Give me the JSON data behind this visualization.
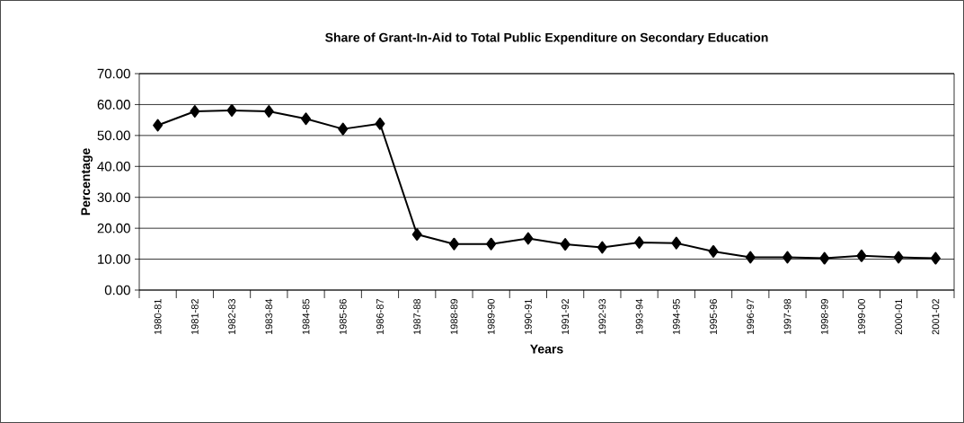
{
  "chart_data": {
    "type": "line",
    "title": "Share of Grant-In-Aid to Total Public Expenditure on Secondary Education",
    "xlabel": "Years",
    "ylabel": "Percentage",
    "categories": [
      "1980-81",
      "1981-82",
      "1982-83",
      "1983-84",
      "1984-85",
      "1985-86",
      "1986-87",
      "1987-88",
      "1988-89",
      "1989-90",
      "1990-91",
      "1991-92",
      "1992-93",
      "1993-94",
      "1994-95",
      "1995-96",
      "1996-97",
      "1997-98",
      "1998-99",
      "1999-00",
      "2000-01",
      "2001-02"
    ],
    "series": [
      {
        "color": "#000000",
        "values": [
          53.3,
          57.8,
          58.1,
          57.8,
          55.4,
          52.1,
          53.8,
          18.0,
          14.9,
          14.9,
          16.7,
          14.8,
          13.8,
          15.4,
          15.2,
          12.5,
          10.6,
          10.6,
          10.3,
          11.1,
          10.6,
          10.3
        ]
      }
    ],
    "ylim": [
      0,
      70
    ],
    "yticks": [
      {
        "value": 0,
        "label": "0.00"
      },
      {
        "value": 10,
        "label": "10.00"
      },
      {
        "value": 20,
        "label": "20.00"
      },
      {
        "value": 30,
        "label": "30.00"
      },
      {
        "value": 40,
        "label": "40.00"
      },
      {
        "value": 50,
        "label": "50.00"
      },
      {
        "value": 60,
        "label": "60.00"
      },
      {
        "value": 70,
        "label": "70.00"
      }
    ],
    "grid": "y",
    "marker": "diamond",
    "line_style": "solid"
  }
}
